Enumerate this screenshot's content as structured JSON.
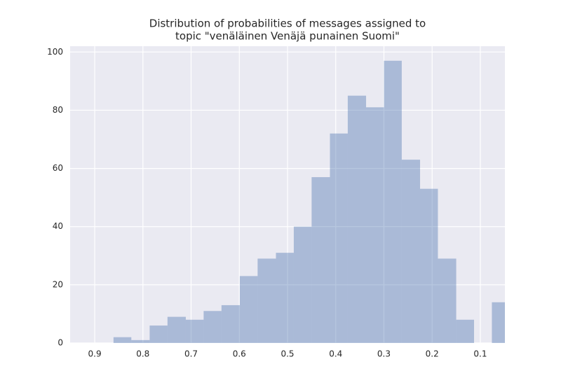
{
  "chart_data": {
    "type": "histogram",
    "title": [
      "Distribution of probabilities of messages assigned to",
      "topic \"venäläinen Venäjä punainen Suomi\""
    ],
    "bins": [
      0.861,
      0.824,
      0.786,
      0.749,
      0.711,
      0.674,
      0.637,
      0.599,
      0.562,
      0.524,
      0.487,
      0.45,
      0.412,
      0.375,
      0.337,
      0.3,
      0.263,
      0.225,
      0.188,
      0.15,
      0.113,
      0.076,
      0.038
    ],
    "values": [
      2,
      1,
      6,
      9,
      8,
      11,
      13,
      23,
      29,
      31,
      40,
      57,
      72,
      85,
      81,
      97,
      63,
      53,
      29,
      8,
      0,
      14
    ],
    "color": "#4c72b0",
    "alpha": 0.4,
    "background": "#eaeaf2",
    "xlim": [
      0.951,
      0.049
    ],
    "xticks": [
      0.9,
      0.8,
      0.7,
      0.6,
      0.5,
      0.4,
      0.3,
      0.2,
      0.1
    ],
    "ylim": [
      0,
      102
    ],
    "yticks": [
      0,
      20,
      40,
      60,
      80,
      100
    ],
    "grid": true
  }
}
